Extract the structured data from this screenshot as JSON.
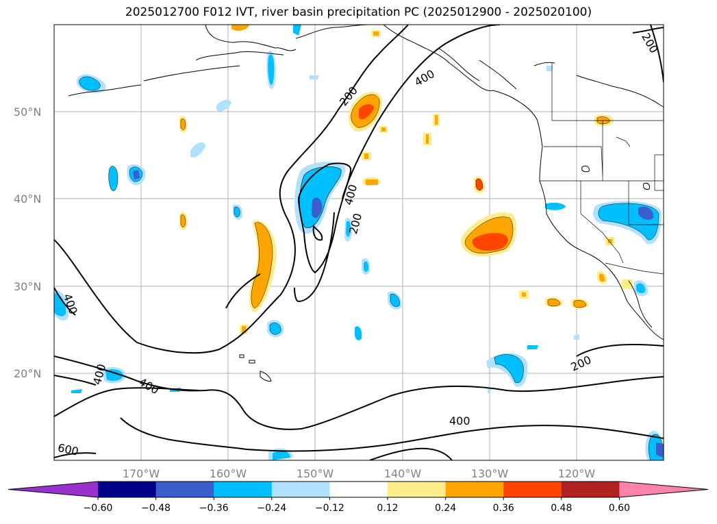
{
  "title": "2025012700 F012 IVT, river basin precipitation PC (2025012900 - 2025020100)",
  "map": {
    "lat_labels": [
      "50°N",
      "40°N",
      "30°N",
      "20°N"
    ],
    "lon_labels": [
      "170°W",
      "160°W",
      "150°W",
      "140°W",
      "130°W",
      "120°W"
    ],
    "ivt_contour_labels": [
      "200",
      "400",
      "200",
      "400",
      "200",
      "400",
      "400",
      "400",
      "200",
      "400",
      "600"
    ]
  },
  "colorbar": {
    "ticks": [
      "−0.60",
      "−0.48",
      "−0.36",
      "−0.24",
      "−0.12",
      "0.12",
      "0.24",
      "0.36",
      "0.48",
      "0.60"
    ],
    "colors": [
      "#9932cc",
      "#00008b",
      "#3a5fcd",
      "#00bfff",
      "#b0e2ff",
      "#ffffff",
      "#ffec8b",
      "#ffa500",
      "#ff4500",
      "#b22222",
      "#ff82ab"
    ]
  }
}
